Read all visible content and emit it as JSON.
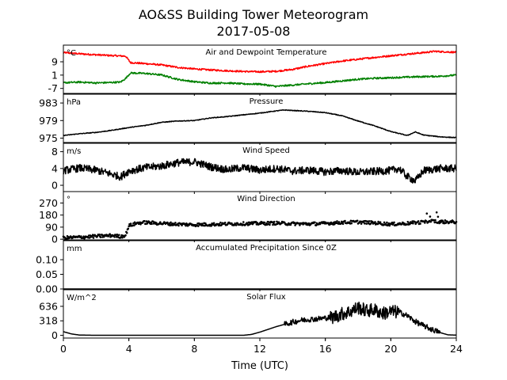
{
  "title": "AO&SS Building Tower Meteorogram",
  "subtitle": "2017-05-08",
  "xlabel": "Time (UTC)",
  "x_ticks": [
    0,
    4,
    8,
    12,
    16,
    20,
    24
  ],
  "xlim": [
    0,
    24
  ],
  "chart_data": [
    {
      "type": "line",
      "title": "Air and Dewpoint Temperature",
      "unit": "°C",
      "ylim": [
        -10,
        19
      ],
      "y_ticks": [
        -7,
        1,
        9
      ],
      "series": [
        {
          "color": "#ff0000",
          "x": [
            0,
            1,
            2,
            3,
            3.8,
            4.1,
            5,
            6,
            7,
            8,
            9,
            10,
            11,
            12,
            13,
            14,
            15,
            16,
            17,
            18,
            19,
            20,
            21,
            22,
            22.7,
            23,
            24
          ],
          "y": [
            14.5,
            13.8,
            13.2,
            12.7,
            12.4,
            8.5,
            7.9,
            7.1,
            5.6,
            4.7,
            4.1,
            3.6,
            3.2,
            3.0,
            3.3,
            4.4,
            6.4,
            7.9,
            9.4,
            10.5,
            11.6,
            12.6,
            13.6,
            14.5,
            15.3,
            15.1,
            14.7
          ]
        },
        {
          "color": "#008000",
          "x": [
            0,
            1,
            2,
            3,
            3.5,
            3.8,
            4.1,
            5,
            6,
            7,
            8,
            9,
            10,
            11,
            12,
            13,
            14,
            15,
            16,
            17,
            18,
            19,
            20,
            21,
            22,
            23,
            24
          ],
          "y": [
            -3.6,
            -3.2,
            -3.7,
            -3.4,
            -3.2,
            -1.0,
            2.3,
            2.0,
            1.1,
            -1.6,
            -3.0,
            -3.8,
            -3.7,
            -4.3,
            -4.4,
            -5.8,
            -5.0,
            -4.2,
            -3.5,
            -2.5,
            -1.5,
            -0.9,
            -0.6,
            -0.2,
            0.1,
            0.3,
            1.0
          ]
        }
      ]
    },
    {
      "type": "line",
      "title": "Pressure",
      "unit": "hPa",
      "ylim": [
        974,
        985
      ],
      "y_ticks": [
        975,
        979,
        983
      ],
      "series": [
        {
          "color": "#000000",
          "x": [
            0,
            1,
            2,
            3,
            4,
            5,
            6,
            7,
            8,
            9,
            10,
            11,
            12,
            13,
            13.5,
            14,
            15,
            16,
            17,
            18,
            19,
            20,
            21,
            21.5,
            22,
            23,
            24
          ],
          "y": [
            975.6,
            976.0,
            976.3,
            976.8,
            977.4,
            977.9,
            978.6,
            978.9,
            979.0,
            979.6,
            979.9,
            980.3,
            980.7,
            981.2,
            981.4,
            981.3,
            981.1,
            980.8,
            980.1,
            978.9,
            977.8,
            976.5,
            975.6,
            976.4,
            975.7,
            975.3,
            975.1
          ]
        }
      ]
    },
    {
      "type": "line",
      "title": "Wind Speed",
      "unit": "m/s",
      "ylim": [
        -1.5,
        10
      ],
      "y_ticks": [
        0,
        4,
        8
      ],
      "series": [
        {
          "color": "#000000",
          "x": [
            0,
            1,
            2,
            3,
            3.5,
            4,
            5,
            6,
            7,
            8,
            9,
            10,
            11,
            12,
            13,
            14,
            15,
            16,
            17,
            18,
            19,
            20,
            20.5,
            21,
            21.5,
            22,
            23,
            24
          ],
          "y": [
            3.5,
            4.1,
            3.6,
            2.6,
            2.0,
            3.4,
            4.2,
            4.6,
            5.4,
            5.6,
            4.4,
            3.7,
            4.2,
            3.6,
            4.0,
            3.4,
            3.6,
            3.2,
            3.5,
            3.1,
            3.3,
            3.5,
            4.0,
            2.1,
            1.0,
            3.5,
            4.0,
            4.0
          ]
        }
      ]
    },
    {
      "type": "scatter",
      "title": "Wind Direction",
      "unit": "°",
      "ylim": [
        -5,
        355
      ],
      "y_ticks": [
        0,
        90,
        180,
        270
      ],
      "series": [
        {
          "color": "#000000",
          "x": [
            0,
            1,
            2,
            3,
            3.5,
            3.8,
            4,
            4.5,
            5,
            6,
            7,
            8,
            9,
            10,
            11,
            12,
            13,
            14,
            15,
            16,
            17,
            18,
            19,
            20,
            21,
            22,
            22.5,
            23,
            24
          ],
          "y": [
            10,
            15,
            22,
            28,
            20,
            30,
            100,
            120,
            125,
            118,
            112,
            108,
            110,
            114,
            116,
            118,
            120,
            116,
            114,
            118,
            125,
            128,
            122,
            112,
            118,
            128,
            135,
            130,
            128
          ]
        }
      ]
    },
    {
      "type": "line",
      "title": "Accumulated Precipitation Since 0Z",
      "unit": "mm",
      "ylim": [
        0,
        0.165
      ],
      "y_ticks": [
        0.0,
        0.05,
        0.1
      ],
      "y_tick_labels": [
        "0.00",
        "0.05",
        "0.10"
      ],
      "series": [
        {
          "color": "#000000",
          "x": [
            0,
            24
          ],
          "y": [
            0,
            0
          ]
        }
      ]
    },
    {
      "type": "line",
      "title": "Solar Flux",
      "unit": "W/m^2",
      "ylim": [
        -60,
        1000
      ],
      "y_ticks": [
        0,
        318,
        636
      ],
      "series": [
        {
          "color": "#000000",
          "x": [
            0,
            0.5,
            1,
            2,
            4,
            6,
            8,
            10,
            11,
            11.5,
            12,
            12.5,
            13,
            13.5,
            14,
            14.5,
            15,
            15.5,
            16,
            16.5,
            17,
            17.5,
            18,
            18.5,
            19,
            19.5,
            20,
            20.5,
            21,
            21.5,
            22,
            22.5,
            23,
            23.5,
            24
          ],
          "y": [
            80,
            30,
            5,
            0,
            0,
            0,
            0,
            0,
            0,
            20,
            70,
            130,
            190,
            240,
            290,
            330,
            350,
            360,
            380,
            400,
            470,
            520,
            610,
            540,
            560,
            480,
            520,
            510,
            430,
            300,
            210,
            130,
            60,
            10,
            5
          ]
        }
      ]
    }
  ]
}
